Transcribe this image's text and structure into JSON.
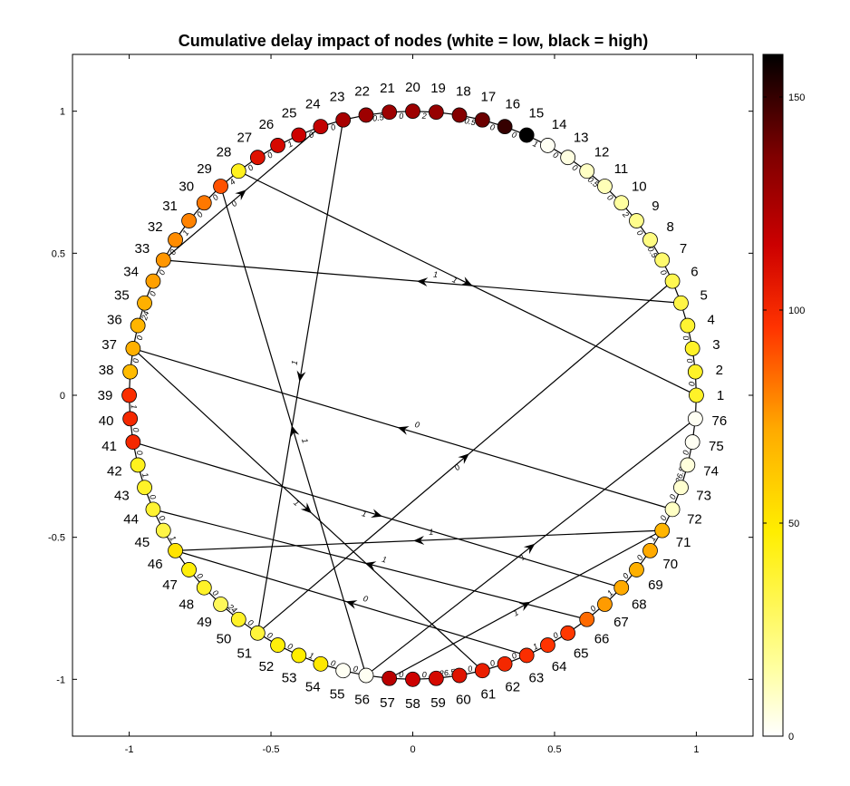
{
  "chart_data": {
    "type": "network",
    "title": "Cumulative delay impact of nodes (white = low, black = high)",
    "xlim": [
      -1.2,
      1.2
    ],
    "ylim": [
      -1.2,
      1.2
    ],
    "xticks": [
      -1,
      -0.5,
      0,
      0.5,
      1
    ],
    "xtick_labels": [
      "-1",
      "-0.5",
      "0",
      "0.5",
      "1"
    ],
    "yticks": [
      1,
      0.5,
      0,
      -0.5,
      -1
    ],
    "ytick_labels": [
      "1",
      "0.5",
      "0",
      "-0.5",
      "-1"
    ],
    "layout": "circle",
    "node_count": 76,
    "colormap": "hot (reversed)",
    "colorbar": {
      "min": 0,
      "max": 160,
      "ticks": [
        0,
        50,
        100,
        150
      ],
      "tick_labels": [
        "0",
        "50",
        "100",
        "150"
      ]
    },
    "nodes": [
      {
        "id": "1",
        "value": 40
      },
      {
        "id": "2",
        "value": 40
      },
      {
        "id": "3",
        "value": 40
      },
      {
        "id": "4",
        "value": 38
      },
      {
        "id": "5",
        "value": 34
      },
      {
        "id": "6",
        "value": 32
      },
      {
        "id": "7",
        "value": 26
      },
      {
        "id": "8",
        "value": 22
      },
      {
        "id": "9",
        "value": 20
      },
      {
        "id": "10",
        "value": 16
      },
      {
        "id": "11",
        "value": 12
      },
      {
        "id": "12",
        "value": 10
      },
      {
        "id": "13",
        "value": 5
      },
      {
        "id": "14",
        "value": 2
      },
      {
        "id": "15",
        "value": 160
      },
      {
        "id": "16",
        "value": 150
      },
      {
        "id": "17",
        "value": 140
      },
      {
        "id": "18",
        "value": 135
      },
      {
        "id": "19",
        "value": 130
      },
      {
        "id": "20",
        "value": 128
      },
      {
        "id": "21",
        "value": 128
      },
      {
        "id": "22",
        "value": 128
      },
      {
        "id": "23",
        "value": 125
      },
      {
        "id": "24",
        "value": 118
      },
      {
        "id": "25",
        "value": 115
      },
      {
        "id": "26",
        "value": 112
      },
      {
        "id": "27",
        "value": 108
      },
      {
        "id": "28",
        "value": 42
      },
      {
        "id": "29",
        "value": 90
      },
      {
        "id": "30",
        "value": 82
      },
      {
        "id": "31",
        "value": 80
      },
      {
        "id": "32",
        "value": 78
      },
      {
        "id": "33",
        "value": 76
      },
      {
        "id": "34",
        "value": 74
      },
      {
        "id": "35",
        "value": 70
      },
      {
        "id": "36",
        "value": 68
      },
      {
        "id": "37",
        "value": 70
      },
      {
        "id": "38",
        "value": 66
      },
      {
        "id": "39",
        "value": 98
      },
      {
        "id": "40",
        "value": 100
      },
      {
        "id": "41",
        "value": 100
      },
      {
        "id": "42",
        "value": 42
      },
      {
        "id": "43",
        "value": 40
      },
      {
        "id": "44",
        "value": 38
      },
      {
        "id": "45",
        "value": 34
      },
      {
        "id": "46",
        "value": 52
      },
      {
        "id": "47",
        "value": 46
      },
      {
        "id": "48",
        "value": 40
      },
      {
        "id": "49",
        "value": 30
      },
      {
        "id": "50",
        "value": 40
      },
      {
        "id": "51",
        "value": 36
      },
      {
        "id": "52",
        "value": 46
      },
      {
        "id": "53",
        "value": 48
      },
      {
        "id": "54",
        "value": 50
      },
      {
        "id": "55",
        "value": 2
      },
      {
        "id": "56",
        "value": 2
      },
      {
        "id": "57",
        "value": 120
      },
      {
        "id": "58",
        "value": 115
      },
      {
        "id": "59",
        "value": 112
      },
      {
        "id": "60",
        "value": 108
      },
      {
        "id": "61",
        "value": 104
      },
      {
        "id": "62",
        "value": 100
      },
      {
        "id": "63",
        "value": 98
      },
      {
        "id": "64",
        "value": 96
      },
      {
        "id": "65",
        "value": 95
      },
      {
        "id": "66",
        "value": 85
      },
      {
        "id": "67",
        "value": 75
      },
      {
        "id": "68",
        "value": 72
      },
      {
        "id": "69",
        "value": 70
      },
      {
        "id": "70",
        "value": 72
      },
      {
        "id": "71",
        "value": 68
      },
      {
        "id": "72",
        "value": 10
      },
      {
        "id": "73",
        "value": 8
      },
      {
        "id": "74",
        "value": 6
      },
      {
        "id": "75",
        "value": 2
      },
      {
        "id": "76",
        "value": 2
      }
    ],
    "ring_edge_labels": [
      {
        "after": "1",
        "label": "0"
      },
      {
        "after": "2",
        "label": "0"
      },
      {
        "after": "3",
        "label": "0"
      },
      {
        "after": "6",
        "label": "0"
      },
      {
        "after": "7",
        "label": "0.5"
      },
      {
        "after": "8",
        "label": "0"
      },
      {
        "after": "9",
        "label": "2"
      },
      {
        "after": "10",
        "label": "0"
      },
      {
        "after": "11",
        "label": "0.5"
      },
      {
        "after": "12",
        "label": "0"
      },
      {
        "after": "13",
        "label": "0"
      },
      {
        "after": "14",
        "label": "1"
      },
      {
        "after": "15",
        "label": "0"
      },
      {
        "after": "16",
        "label": "0"
      },
      {
        "after": "17",
        "label": "0.5"
      },
      {
        "after": "19",
        "label": "2"
      },
      {
        "after": "20",
        "label": "0"
      },
      {
        "after": "21",
        "label": "0.5"
      },
      {
        "after": "23",
        "label": "0"
      },
      {
        "after": "24",
        "label": "0"
      },
      {
        "after": "25",
        "label": "1"
      },
      {
        "after": "26",
        "label": "0"
      },
      {
        "after": "27",
        "label": "0"
      },
      {
        "after": "28",
        "label": "4"
      },
      {
        "after": "29",
        "label": "0"
      },
      {
        "after": "30",
        "label": "0"
      },
      {
        "after": "31",
        "label": "1"
      },
      {
        "after": "32",
        "label": "0"
      },
      {
        "after": "33",
        "label": "0"
      },
      {
        "after": "34",
        "label": "0"
      },
      {
        "after": "35",
        "label": "24"
      },
      {
        "after": "36",
        "label": "0"
      },
      {
        "after": "37",
        "label": "0"
      },
      {
        "after": "39",
        "label": "1"
      },
      {
        "after": "40",
        "label": "0"
      },
      {
        "after": "41",
        "label": "0"
      },
      {
        "after": "42",
        "label": "1"
      },
      {
        "after": "43",
        "label": "0"
      },
      {
        "after": "44",
        "label": "0"
      },
      {
        "after": "45",
        "label": "1"
      },
      {
        "after": "47",
        "label": "0"
      },
      {
        "after": "48",
        "label": "0"
      },
      {
        "after": "49",
        "label": "24"
      },
      {
        "after": "50",
        "label": "0"
      },
      {
        "after": "51",
        "label": "0"
      },
      {
        "after": "52",
        "label": "0"
      },
      {
        "after": "53",
        "label": "1"
      },
      {
        "after": "54",
        "label": "0"
      },
      {
        "after": "55",
        "label": "0"
      },
      {
        "after": "57",
        "label": "0"
      },
      {
        "after": "58",
        "label": "0"
      },
      {
        "after": "59",
        "label": "26.5"
      },
      {
        "after": "60",
        "label": "0"
      },
      {
        "after": "61",
        "label": "0"
      },
      {
        "after": "62",
        "label": "0"
      },
      {
        "after": "63",
        "label": "1"
      },
      {
        "after": "64",
        "label": "0"
      },
      {
        "after": "66",
        "label": "0"
      },
      {
        "after": "67",
        "label": "1"
      },
      {
        "after": "68",
        "label": "0"
      },
      {
        "after": "69",
        "label": "0"
      },
      {
        "after": "70",
        "label": "1"
      },
      {
        "after": "71",
        "label": "0"
      },
      {
        "after": "72",
        "label": "0"
      },
      {
        "after": "73",
        "label": "26.5"
      },
      {
        "after": "74",
        "label": "0"
      }
    ],
    "chords": [
      {
        "from": "5",
        "to": "33",
        "label": "1"
      },
      {
        "from": "28",
        "to": "1",
        "label": "1"
      },
      {
        "from": "33",
        "to": "24",
        "label": "0"
      },
      {
        "from": "23",
        "to": "51",
        "label": "1"
      },
      {
        "from": "56",
        "to": "29",
        "label": "1"
      },
      {
        "from": "37",
        "to": "61",
        "label": "1"
      },
      {
        "from": "72",
        "to": "37",
        "label": "0"
      },
      {
        "from": "51",
        "to": "6",
        "label": "0"
      },
      {
        "from": "57",
        "to": "71",
        "label": "1"
      },
      {
        "from": "56",
        "to": "76",
        "label": "1"
      },
      {
        "from": "71",
        "to": "46",
        "label": "1"
      },
      {
        "from": "41",
        "to": "68",
        "label": "1"
      },
      {
        "from": "66",
        "to": "44",
        "label": "1"
      },
      {
        "from": "63",
        "to": "46",
        "label": "0"
      }
    ]
  }
}
